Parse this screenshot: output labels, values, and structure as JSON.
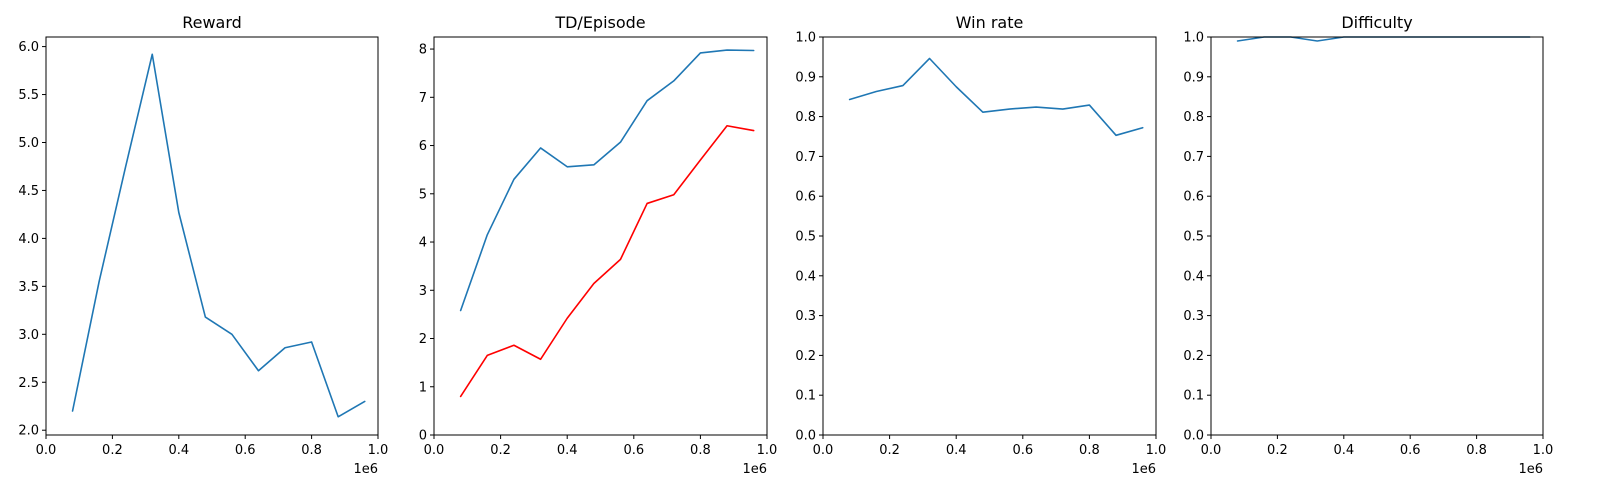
{
  "chart_data": [
    {
      "type": "line",
      "title": "Reward",
      "xlim": [
        0,
        1000000
      ],
      "ylim": [
        1.95,
        6.1
      ],
      "xticks": [
        0,
        200000,
        400000,
        600000,
        800000,
        1000000
      ],
      "xtick_labels": [
        "0.0",
        "0.2",
        "0.4",
        "0.6",
        "0.8",
        "1.0"
      ],
      "yticks": [
        2.0,
        2.5,
        3.0,
        3.5,
        4.0,
        4.5,
        5.0,
        5.5,
        6.0
      ],
      "ytick_labels": [
        "2.0",
        "2.5",
        "3.0",
        "3.5",
        "4.0",
        "4.5",
        "5.0",
        "5.5",
        "6.0"
      ],
      "x_offset_label": "1e6",
      "x": [
        80000,
        160000,
        240000,
        320000,
        400000,
        480000,
        560000,
        640000,
        720000,
        800000,
        880000,
        960000
      ],
      "series": [
        {
          "name": "reward",
          "color": "#1f77b4",
          "values": [
            2.2,
            3.55,
            4.75,
            5.92,
            4.27,
            3.18,
            3.0,
            2.62,
            2.86,
            2.92,
            2.14,
            2.3
          ]
        }
      ]
    },
    {
      "type": "line",
      "title": "TD/Episode",
      "xlim": [
        0,
        1000000
      ],
      "ylim": [
        0,
        8.25
      ],
      "xticks": [
        0,
        200000,
        400000,
        600000,
        800000,
        1000000
      ],
      "xtick_labels": [
        "0.0",
        "0.2",
        "0.4",
        "0.6",
        "0.8",
        "1.0"
      ],
      "yticks": [
        0,
        1,
        2,
        3,
        4,
        5,
        6,
        7,
        8
      ],
      "ytick_labels": [
        "0",
        "1",
        "2",
        "3",
        "4",
        "5",
        "6",
        "7",
        "8"
      ],
      "x_offset_label": "1e6",
      "x": [
        80000,
        160000,
        240000,
        320000,
        400000,
        480000,
        560000,
        640000,
        720000,
        800000,
        880000,
        960000
      ],
      "series": [
        {
          "name": "blue",
          "color": "#1f77b4",
          "values": [
            2.58,
            4.15,
            5.3,
            5.95,
            5.56,
            5.6,
            6.07,
            6.93,
            7.34,
            7.92,
            7.98,
            7.97
          ]
        },
        {
          "name": "red",
          "color": "#ff0000",
          "values": [
            0.8,
            1.65,
            1.86,
            1.57,
            2.42,
            3.14,
            3.64,
            4.8,
            4.98,
            5.7,
            6.41,
            6.31
          ]
        }
      ]
    },
    {
      "type": "line",
      "title": "Win rate",
      "xlim": [
        0,
        1000000
      ],
      "ylim": [
        0,
        1.0
      ],
      "xticks": [
        0,
        200000,
        400000,
        600000,
        800000,
        1000000
      ],
      "xtick_labels": [
        "0.0",
        "0.2",
        "0.4",
        "0.6",
        "0.8",
        "1.0"
      ],
      "yticks": [
        0,
        0.1,
        0.2,
        0.3,
        0.4,
        0.5,
        0.6,
        0.7,
        0.8,
        0.9,
        1.0
      ],
      "ytick_labels": [
        "0.0",
        "0.1",
        "0.2",
        "0.3",
        "0.4",
        "0.5",
        "0.6",
        "0.7",
        "0.8",
        "0.9",
        "1.0"
      ],
      "x_offset_label": "1e6",
      "x": [
        80000,
        160000,
        240000,
        320000,
        400000,
        480000,
        560000,
        640000,
        720000,
        800000,
        880000,
        960000
      ],
      "series": [
        {
          "name": "win rate",
          "color": "#1f77b4",
          "values": [
            0.843,
            0.863,
            0.878,
            0.946,
            0.875,
            0.811,
            0.819,
            0.824,
            0.819,
            0.829,
            0.753,
            0.772
          ]
        }
      ]
    },
    {
      "type": "line",
      "title": "Difficulty",
      "xlim": [
        0,
        1000000
      ],
      "ylim": [
        0,
        1.0
      ],
      "xticks": [
        0,
        200000,
        400000,
        600000,
        800000,
        1000000
      ],
      "xtick_labels": [
        "0.0",
        "0.2",
        "0.4",
        "0.6",
        "0.8",
        "1.0"
      ],
      "yticks": [
        0,
        0.1,
        0.2,
        0.3,
        0.4,
        0.5,
        0.6,
        0.7,
        0.8,
        0.9,
        1.0
      ],
      "ytick_labels": [
        "0.0",
        "0.1",
        "0.2",
        "0.3",
        "0.4",
        "0.5",
        "0.6",
        "0.7",
        "0.8",
        "0.9",
        "1.0"
      ],
      "x_offset_label": "1e6",
      "x": [
        80000,
        160000,
        240000,
        320000,
        400000,
        480000,
        560000,
        640000,
        720000,
        800000,
        880000,
        960000
      ],
      "series": [
        {
          "name": "difficulty",
          "color": "#1f77b4",
          "values": [
            0.99,
            1.0,
            1.0,
            0.99,
            1.0,
            1.0,
            1.0,
            1.0,
            1.0,
            1.0,
            1.0,
            1.0
          ]
        }
      ]
    }
  ]
}
